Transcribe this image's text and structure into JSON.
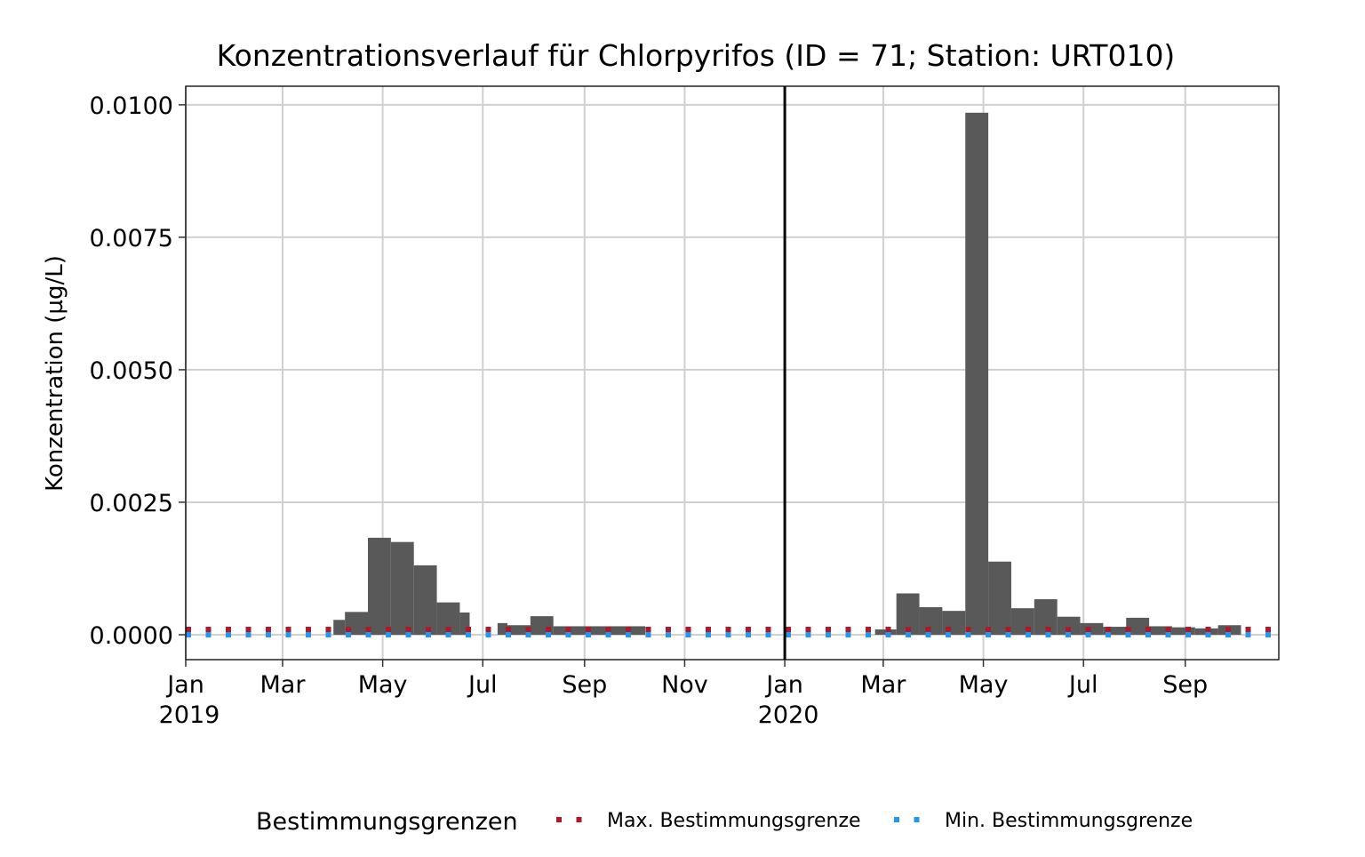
{
  "chart_data": {
    "type": "bar",
    "title": "Konzentrationsverlauf für Chlorpyrifos (ID = 71; Station: URT010)",
    "ylabel": "Konzentration (µg/L)",
    "xlabel": "",
    "ylim": [
      -0.00047,
      0.01035
    ],
    "xlim": [
      "2019-01-01",
      "2020-10-28"
    ],
    "y_ticks": [
      {
        "value": 0.0,
        "label": "0.0000"
      },
      {
        "value": 0.0025,
        "label": "0.0025"
      },
      {
        "value": 0.005,
        "label": "0.0050"
      },
      {
        "value": 0.0075,
        "label": "0.0075"
      },
      {
        "value": 0.01,
        "label": "0.0100"
      }
    ],
    "x_ticks": [
      {
        "date": "2019-01-01",
        "label": "Jan",
        "year": "2019"
      },
      {
        "date": "2019-03-01",
        "label": "Mar",
        "year": ""
      },
      {
        "date": "2019-05-01",
        "label": "May",
        "year": ""
      },
      {
        "date": "2019-07-01",
        "label": "Jul",
        "year": ""
      },
      {
        "date": "2019-09-01",
        "label": "Sep",
        "year": ""
      },
      {
        "date": "2019-11-01",
        "label": "Nov",
        "year": ""
      },
      {
        "date": "2020-01-01",
        "label": "Jan",
        "year": "2020"
      },
      {
        "date": "2020-03-01",
        "label": "Mar",
        "year": ""
      },
      {
        "date": "2020-05-01",
        "label": "May",
        "year": ""
      },
      {
        "date": "2020-07-01",
        "label": "Jul",
        "year": ""
      },
      {
        "date": "2020-09-01",
        "label": "Sep",
        "year": ""
      }
    ],
    "year_boundary": "2020-01-01",
    "grid": true,
    "bars": [
      {
        "start": "2019-04-01",
        "end": "2019-04-08",
        "value": 0.00028
      },
      {
        "start": "2019-04-08",
        "end": "2019-04-22",
        "value": 0.00043
      },
      {
        "start": "2019-04-22",
        "end": "2019-05-06",
        "value": 0.00183
      },
      {
        "start": "2019-05-06",
        "end": "2019-05-20",
        "value": 0.00175
      },
      {
        "start": "2019-05-20",
        "end": "2019-06-03",
        "value": 0.00131
      },
      {
        "start": "2019-06-03",
        "end": "2019-06-17",
        "value": 0.00061
      },
      {
        "start": "2019-06-17",
        "end": "2019-06-23",
        "value": 0.00042
      },
      {
        "start": "2019-07-10",
        "end": "2019-07-16",
        "value": 0.00022
      },
      {
        "start": "2019-07-16",
        "end": "2019-07-30",
        "value": 0.00018
      },
      {
        "start": "2019-07-30",
        "end": "2019-08-13",
        "value": 0.00035
      },
      {
        "start": "2019-08-13",
        "end": "2019-10-08",
        "value": 0.00016
      },
      {
        "start": "2020-02-25",
        "end": "2020-03-09",
        "value": 0.0001
      },
      {
        "start": "2020-03-09",
        "end": "2020-03-23",
        "value": 0.00078
      },
      {
        "start": "2020-03-23",
        "end": "2020-04-06",
        "value": 0.00052
      },
      {
        "start": "2020-04-06",
        "end": "2020-04-20",
        "value": 0.00045
      },
      {
        "start": "2020-04-20",
        "end": "2020-05-04",
        "value": 0.00985
      },
      {
        "start": "2020-05-04",
        "end": "2020-05-18",
        "value": 0.00138
      },
      {
        "start": "2020-05-18",
        "end": "2020-06-01",
        "value": 0.0005
      },
      {
        "start": "2020-06-01",
        "end": "2020-06-15",
        "value": 0.00067
      },
      {
        "start": "2020-06-15",
        "end": "2020-06-29",
        "value": 0.00034
      },
      {
        "start": "2020-06-29",
        "end": "2020-07-13",
        "value": 0.00022
      },
      {
        "start": "2020-07-13",
        "end": "2020-07-27",
        "value": 0.00015
      },
      {
        "start": "2020-07-27",
        "end": "2020-08-10",
        "value": 0.00032
      },
      {
        "start": "2020-08-10",
        "end": "2020-08-24",
        "value": 0.00016
      },
      {
        "start": "2020-08-24",
        "end": "2020-09-07",
        "value": 0.00014
      },
      {
        "start": "2020-09-07",
        "end": "2020-09-21",
        "value": 0.00012
      },
      {
        "start": "2020-09-21",
        "end": "2020-10-05",
        "value": 0.00018
      }
    ],
    "limits": [
      {
        "name": "Max. Bestimmungsgrenze",
        "value": 0.0001,
        "color": "#b2182b",
        "style": "dotted"
      },
      {
        "name": "Min. Bestimmungsgrenze",
        "value": 0.0,
        "color": "#2196f3",
        "style": "dotted"
      }
    ],
    "bar_color": "#595959",
    "legend": {
      "title": "Bestimmungsgrenzen",
      "position": "bottom"
    }
  }
}
